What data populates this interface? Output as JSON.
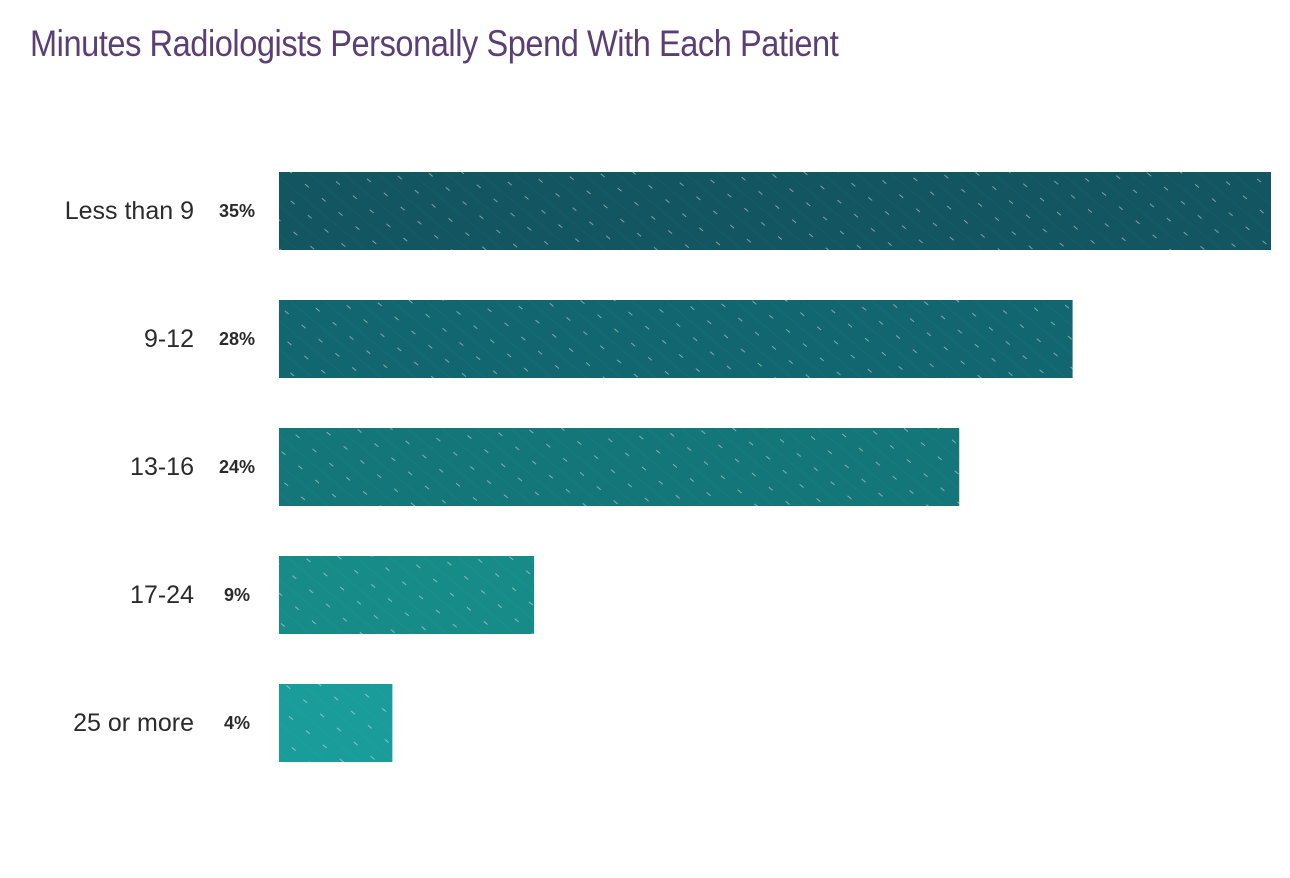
{
  "chart_data": {
    "type": "bar",
    "orientation": "horizontal",
    "title": "Minutes Radiologists Personally Spend With Each Patient",
    "categories": [
      "Less than 9",
      "9-12",
      "13-16",
      "17-24",
      "25 or more"
    ],
    "values": [
      35,
      28,
      24,
      9,
      4
    ],
    "value_labels": [
      "35%",
      "28%",
      "24%",
      "9%",
      "4%"
    ],
    "unit": "%",
    "xlim": [
      0,
      35
    ],
    "grid": false,
    "legend": "none"
  },
  "colors": {
    "title": "#5b3f73",
    "bars": [
      "#135560",
      "#126670",
      "#147679",
      "#178b88",
      "#199c9a"
    ]
  }
}
